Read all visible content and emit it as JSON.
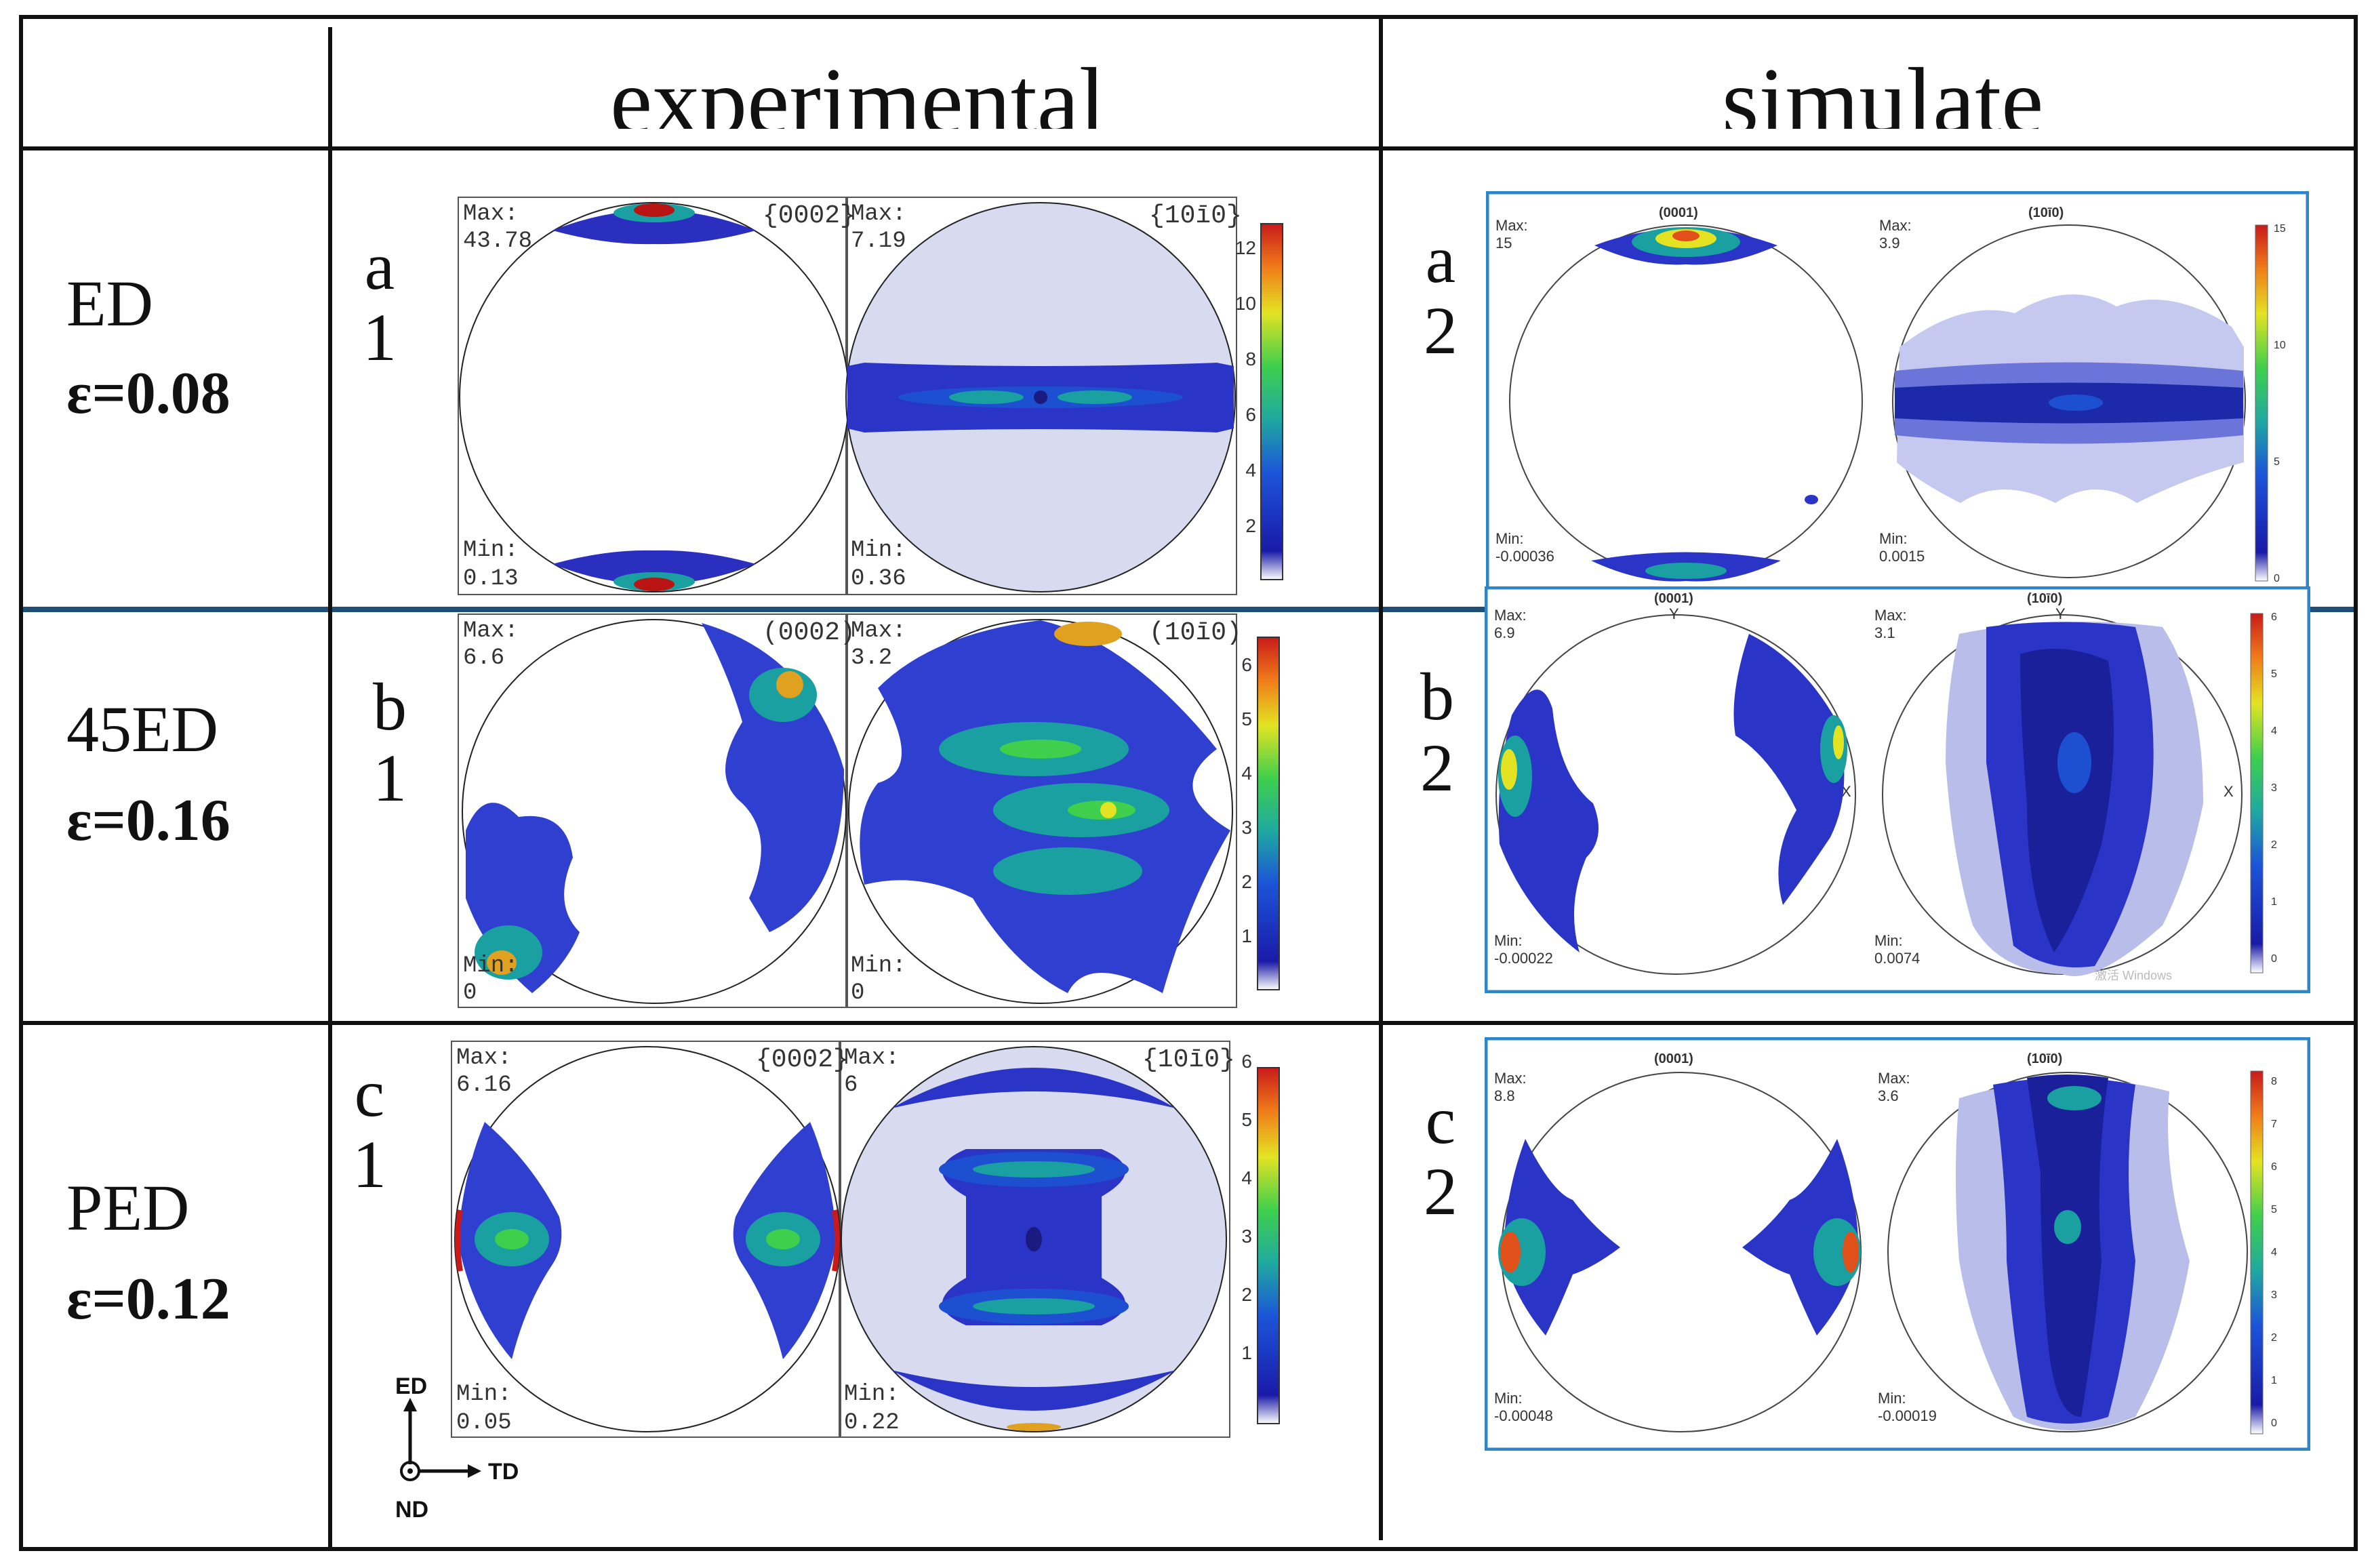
{
  "header": {
    "experimental": "experimental",
    "simulate": "simulate"
  },
  "rows": [
    {
      "condition": "ED",
      "strain": "ε=0.08",
      "exp_tag_letter": "a",
      "exp_tag_num": "1",
      "sim_tag_letter": "a",
      "sim_tag_num": "2"
    },
    {
      "condition": "45ED",
      "strain": "ε=0.16",
      "exp_tag_letter": "b",
      "exp_tag_num": "1",
      "sim_tag_letter": "b",
      "sim_tag_num": "2"
    },
    {
      "condition": "PED",
      "strain": "ε=0.12",
      "exp_tag_letter": "c",
      "exp_tag_num": "1",
      "sim_tag_letter": "c",
      "sim_tag_num": "2"
    }
  ],
  "experimental": [
    {
      "plane_a": "{0002}",
      "plane_b": "{10ŀ1̄0}",
      "plane_b_txt": "{10ī0}",
      "max_a": "43.78",
      "min_a": "0.13",
      "max_b": "7.19",
      "min_b": "0.36",
      "ticks": [
        "12",
        "10",
        "8",
        "6",
        "4",
        "2"
      ]
    },
    {
      "plane_a": "(0002)",
      "plane_b_txt": "(10ī0)",
      "max_a": "6.6",
      "min_a": "0",
      "max_b": "3.2",
      "min_b": "0",
      "ticks": [
        "6",
        "5",
        "4",
        "3",
        "2",
        "1"
      ]
    },
    {
      "plane_a": "{0002}",
      "plane_b_txt": "{10ī0}",
      "max_a": "6.16",
      "min_a": "0.05",
      "max_b": "6",
      "min_b": "0.22",
      "ticks": [
        "6",
        "5",
        "4",
        "3",
        "2",
        "1"
      ]
    }
  ],
  "simulated": [
    {
      "plane_a": "(0001)",
      "plane_b": "(10ī0)",
      "max_a": "15",
      "min_a": "-0.00036",
      "max_b": "3.9",
      "min_b": "0.0015",
      "ticks": [
        "15",
        "10",
        "5",
        "0"
      ]
    },
    {
      "plane_a": "(0001)",
      "plane_b": "(10ī0)",
      "max_a": "6.9",
      "min_a": "-0.00022",
      "max_b": "3.1",
      "min_b": "0.0074",
      "ticks": [
        "6",
        "5",
        "4",
        "3",
        "2",
        "1",
        "0"
      ],
      "axis_y": "Y",
      "axis_x": "X",
      "watermark": "激活 Windows"
    },
    {
      "plane_a": "(0001)",
      "plane_b": "(10ī0)",
      "max_a": "8.8",
      "min_a": "-0.00048",
      "max_b": "3.6",
      "min_b": "-0.00019",
      "ticks": [
        "8",
        "7",
        "6",
        "5",
        "4",
        "3",
        "2",
        "1",
        "0"
      ]
    }
  ],
  "labels": {
    "max": "Max:",
    "min": "Min:",
    "ed": "ED",
    "td": "TD",
    "nd": "ND"
  },
  "colors": {
    "accent_frame": "#2e86c8",
    "divider_blue": "#1f4e79"
  }
}
